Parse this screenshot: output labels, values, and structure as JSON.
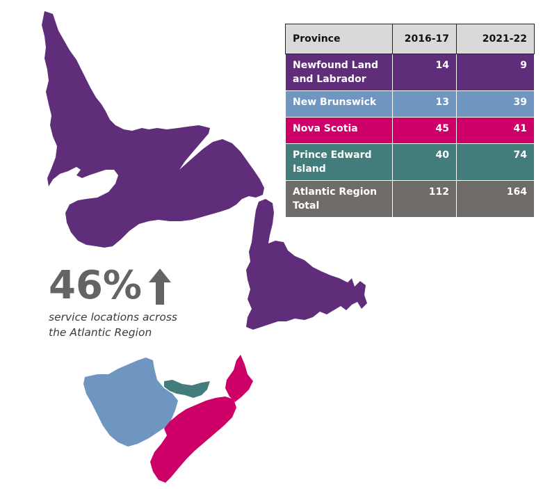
{
  "colors": {
    "newfoundland": "#5f2d79",
    "new_brunswick": "#6f95c1",
    "nova_scotia": "#cc0066",
    "pei": "#427c7b",
    "total": "#6f6b69",
    "header": "#d9d9d9",
    "stat_grey": "#636466"
  },
  "stat": {
    "value": "46%",
    "arrow_icon": "up-arrow-icon",
    "caption_line1": "service locations across",
    "caption_line2": "the Atlantic Region"
  },
  "table": {
    "headers": [
      "Province",
      "2016-17",
      "2021-22"
    ],
    "rows": [
      {
        "name": [
          "Newfound Land",
          "and Labrador"
        ],
        "v2016": "14",
        "v2021": "9",
        "color": "#5f2d79"
      },
      {
        "name": [
          "New Brunswick"
        ],
        "v2016": "13",
        "v2021": "39",
        "color": "#6f95c1"
      },
      {
        "name": [
          "Nova Scotia"
        ],
        "v2016": "45",
        "v2021": "41",
        "color": "#cc0066"
      },
      {
        "name": [
          "Prince Edward",
          "Island"
        ],
        "v2016": "40",
        "v2021": "74",
        "color": "#427c7b"
      },
      {
        "name": [
          "Atlantic Region",
          "Total"
        ],
        "v2016": "112",
        "v2021": "164",
        "color": "#6f6b69"
      }
    ]
  }
}
